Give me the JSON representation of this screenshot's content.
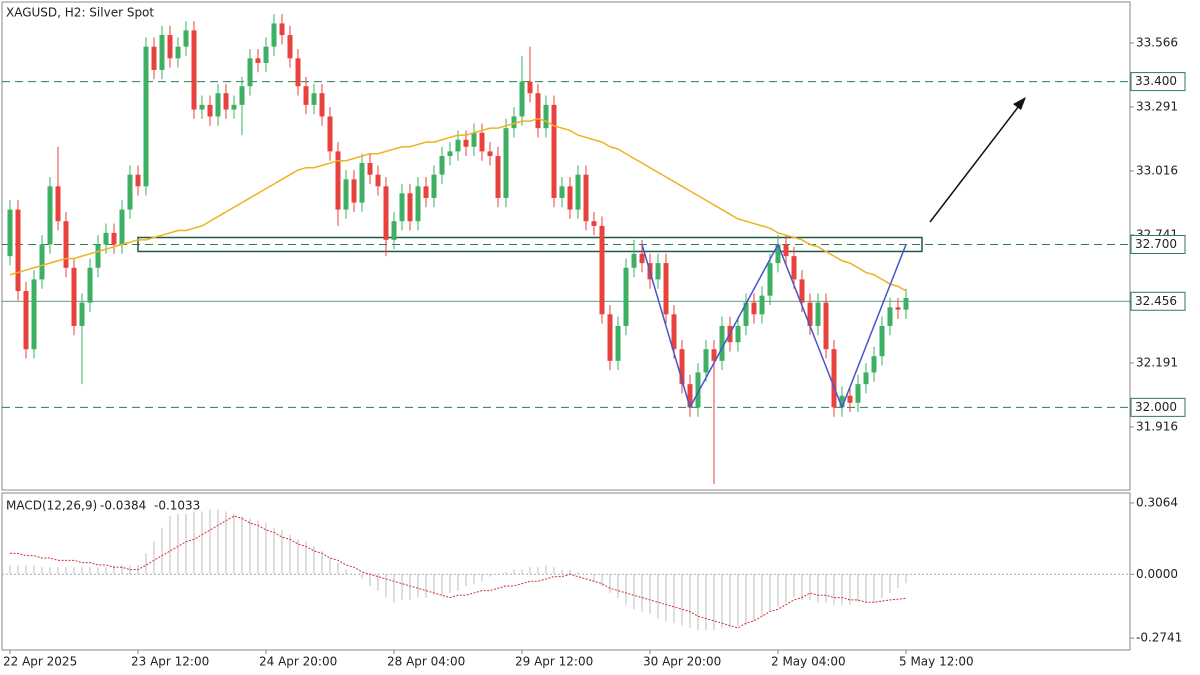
{
  "chart_data": {
    "type": "candlestick",
    "title": "XAGUSD, H2:  Silver Spot",
    "categories": [
      "22 Apr 2025",
      null,
      null,
      null,
      null,
      null,
      null,
      null,
      null,
      null,
      null,
      null,
      null,
      null,
      null,
      null,
      "23 Apr 12:00",
      null,
      null,
      null,
      null,
      null,
      null,
      null,
      null,
      null,
      null,
      null,
      null,
      null,
      null,
      null,
      "24 Apr 20:00",
      null,
      null,
      null,
      null,
      null,
      null,
      null,
      null,
      null,
      null,
      null,
      null,
      null,
      null,
      null,
      "28 Apr 04:00",
      null,
      null,
      null,
      null,
      null,
      null,
      null,
      null,
      null,
      null,
      null,
      null,
      null,
      null,
      null,
      "29 Apr 12:00",
      null,
      null,
      null,
      null,
      null,
      null,
      null,
      null,
      null,
      null,
      null,
      null,
      null,
      null,
      null,
      "30 Apr 20:00",
      null,
      null,
      null,
      null,
      null,
      null,
      null,
      null,
      null,
      null,
      null,
      null,
      null,
      null,
      null,
      "2 May 04:00",
      null,
      null,
      null,
      null,
      null,
      null,
      null,
      null,
      null,
      null,
      null,
      null,
      null,
      null,
      null,
      "5 May 12:00"
    ],
    "open": [
      32.65,
      32.85,
      32.5,
      32.25,
      32.55,
      32.7,
      32.95,
      32.8,
      32.6,
      32.35,
      32.45,
      32.6,
      32.7,
      32.75,
      32.7,
      32.85,
      33.0,
      32.95,
      33.55,
      33.45,
      33.6,
      33.5,
      33.55,
      33.62,
      33.28,
      33.3,
      33.25,
      33.35,
      33.28,
      33.3,
      33.38,
      33.5,
      33.48,
      33.55,
      33.65,
      33.6,
      33.5,
      33.38,
      33.3,
      33.35,
      33.25,
      33.1,
      32.85,
      32.98,
      32.88,
      33.05,
      33.0,
      32.95,
      32.72,
      32.8,
      32.92,
      32.8,
      32.95,
      32.9,
      33.0,
      33.08,
      33.1,
      33.15,
      33.12,
      33.18,
      33.1,
      33.08,
      32.9,
      33.2,
      33.25,
      33.4,
      33.35,
      33.2,
      33.3,
      32.9,
      32.95,
      32.85,
      33.0,
      32.8,
      32.78,
      32.4,
      32.2,
      32.35,
      32.6,
      32.66,
      32.62,
      32.55,
      32.62,
      32.4,
      32.25,
      32.1,
      32.0,
      32.15,
      32.25,
      32.2,
      32.35,
      32.28,
      32.35,
      32.45,
      32.4,
      32.48,
      32.62,
      32.7,
      32.65,
      32.55,
      32.45,
      32.35,
      32.45,
      32.25,
      32.0,
      32.05,
      32.02,
      32.1,
      32.15,
      32.22,
      32.35,
      32.43,
      32.42
    ],
    "high": [
      32.89,
      32.89,
      32.54,
      32.59,
      32.74,
      32.99,
      33.12,
      32.84,
      32.64,
      32.49,
      32.64,
      32.74,
      32.79,
      32.79,
      32.89,
      33.04,
      33.04,
      33.59,
      33.59,
      33.64,
      33.64,
      33.59,
      33.66,
      33.66,
      33.34,
      33.34,
      33.39,
      33.39,
      33.34,
      33.42,
      33.54,
      33.54,
      33.59,
      33.69,
      33.69,
      33.64,
      33.54,
      33.42,
      33.39,
      33.39,
      33.29,
      33.14,
      33.02,
      33.02,
      33.09,
      33.09,
      33.04,
      32.99,
      32.84,
      32.96,
      32.96,
      32.99,
      32.99,
      33.04,
      33.12,
      33.14,
      33.19,
      33.19,
      33.22,
      33.22,
      33.14,
      33.12,
      33.24,
      33.29,
      33.51,
      33.55,
      33.39,
      33.34,
      33.34,
      32.99,
      32.99,
      33.04,
      33.04,
      32.84,
      32.82,
      32.44,
      32.39,
      32.64,
      32.72,
      32.72,
      32.66,
      32.66,
      32.66,
      32.44,
      32.29,
      32.14,
      32.19,
      32.29,
      32.29,
      32.39,
      32.39,
      32.39,
      32.49,
      32.49,
      32.52,
      32.66,
      32.74,
      32.74,
      32.69,
      32.59,
      32.49,
      32.49,
      32.49,
      32.29,
      32.09,
      32.09,
      32.14,
      32.19,
      32.26,
      32.39,
      32.47,
      32.47,
      32.51
    ],
    "low": [
      32.61,
      32.46,
      32.21,
      32.21,
      32.51,
      32.66,
      32.76,
      32.56,
      32.31,
      32.1,
      32.41,
      32.56,
      32.66,
      32.66,
      32.66,
      32.81,
      32.91,
      32.91,
      33.41,
      33.41,
      33.46,
      33.46,
      33.51,
      33.24,
      33.24,
      33.21,
      33.21,
      33.24,
      33.24,
      33.17,
      33.34,
      33.44,
      33.44,
      33.51,
      33.56,
      33.46,
      33.34,
      33.26,
      33.26,
      33.21,
      33.06,
      32.78,
      32.81,
      32.84,
      32.84,
      32.96,
      32.91,
      32.65,
      32.68,
      32.76,
      32.76,
      32.76,
      32.86,
      32.86,
      32.96,
      33.04,
      33.06,
      33.08,
      33.08,
      33.06,
      33.04,
      32.86,
      32.86,
      33.16,
      33.21,
      33.31,
      33.16,
      33.16,
      32.86,
      32.86,
      32.81,
      32.81,
      32.76,
      32.74,
      32.36,
      32.16,
      32.16,
      32.31,
      32.56,
      32.58,
      32.51,
      32.51,
      32.36,
      32.21,
      32.06,
      31.96,
      31.96,
      32.11,
      31.67,
      32.16,
      32.24,
      32.24,
      32.31,
      32.36,
      32.36,
      32.44,
      32.58,
      32.61,
      32.51,
      32.41,
      32.31,
      32.31,
      32.21,
      31.96,
      31.96,
      31.98,
      31.98,
      32.06,
      32.11,
      32.18,
      32.31,
      32.38,
      32.38
    ],
    "close": [
      32.85,
      32.5,
      32.25,
      32.55,
      32.7,
      32.95,
      32.8,
      32.6,
      32.35,
      32.45,
      32.6,
      32.7,
      32.75,
      32.7,
      32.85,
      33.0,
      32.95,
      33.55,
      33.45,
      33.6,
      33.5,
      33.55,
      33.62,
      33.28,
      33.3,
      33.25,
      33.35,
      33.28,
      33.3,
      33.38,
      33.5,
      33.48,
      33.55,
      33.65,
      33.6,
      33.5,
      33.38,
      33.3,
      33.35,
      33.25,
      33.1,
      32.85,
      32.98,
      32.88,
      33.05,
      33.0,
      32.95,
      32.72,
      32.8,
      32.92,
      32.8,
      32.95,
      32.9,
      33.0,
      33.08,
      33.1,
      33.15,
      33.12,
      33.18,
      33.1,
      33.08,
      32.9,
      33.2,
      33.25,
      33.4,
      33.35,
      33.2,
      33.3,
      32.9,
      32.95,
      32.85,
      33.0,
      32.8,
      32.78,
      32.4,
      32.2,
      32.35,
      32.6,
      32.66,
      32.62,
      32.55,
      32.62,
      32.4,
      32.25,
      32.1,
      32.0,
      32.15,
      32.25,
      32.2,
      32.35,
      32.28,
      32.35,
      32.45,
      32.4,
      32.48,
      32.62,
      32.7,
      32.65,
      32.55,
      32.45,
      32.35,
      32.45,
      32.25,
      32.0,
      32.05,
      32.02,
      32.1,
      32.15,
      32.22,
      32.35,
      32.43,
      32.42,
      32.47
    ],
    "up_color": "#3db064",
    "down_color": "#e8423c",
    "ylim": [
      31.645,
      33.742
    ],
    "yticks": [
      33.566,
      33.291,
      33.016,
      32.741,
      32.191,
      31.916
    ],
    "levels": [
      {
        "value": 33.4,
        "label": "33.400"
      },
      {
        "value": 32.7,
        "label": "32.700"
      },
      {
        "value": 32.0,
        "label": "32.000"
      }
    ],
    "level_color": "#2e7d4f",
    "current_price": 32.456,
    "moving_average": {
      "color": "#f0b21e",
      "values": [
        32.57,
        32.58,
        32.59,
        32.6,
        32.61,
        32.62,
        32.63,
        32.64,
        32.64,
        32.65,
        32.66,
        32.67,
        32.68,
        32.69,
        32.7,
        32.71,
        32.72,
        32.72,
        32.73,
        32.74,
        32.75,
        32.76,
        32.76,
        32.77,
        32.78,
        32.8,
        32.82,
        32.84,
        32.86,
        32.88,
        32.9,
        32.92,
        32.94,
        32.96,
        32.98,
        33.0,
        33.02,
        33.03,
        33.03,
        33.04,
        33.05,
        33.06,
        33.06,
        33.07,
        33.08,
        33.09,
        33.09,
        33.1,
        33.11,
        33.12,
        33.12,
        33.13,
        33.14,
        33.14,
        33.15,
        33.16,
        33.17,
        33.17,
        33.18,
        33.19,
        33.2,
        33.2,
        33.21,
        33.22,
        33.23,
        33.23,
        33.24,
        33.23,
        33.21,
        33.2,
        33.19,
        33.17,
        33.16,
        33.15,
        33.14,
        33.12,
        33.11,
        33.09,
        33.07,
        33.05,
        33.03,
        33.01,
        32.99,
        32.97,
        32.95,
        32.93,
        32.91,
        32.89,
        32.87,
        32.85,
        32.83,
        32.81,
        32.8,
        32.79,
        32.78,
        32.77,
        32.75,
        32.74,
        32.73,
        32.72,
        32.7,
        32.69,
        32.67,
        32.65,
        32.63,
        32.62,
        32.6,
        32.58,
        32.57,
        32.55,
        32.53,
        32.52,
        32.5
      ]
    },
    "zone": {
      "start": 16,
      "end": 114,
      "top": 32.73,
      "bottom": 32.67,
      "color": "#1f5a46"
    },
    "pattern": {
      "color": "#4a55c9",
      "x": [
        79,
        85,
        96,
        104,
        112
      ],
      "y": [
        32.7,
        32.0,
        32.7,
        32.0,
        32.7
      ]
    },
    "indicator": {
      "name": "MACD(12,26,9)",
      "histogram": {
        "color": "#bdbdbd",
        "values": [
          0.04,
          0.04,
          0.04,
          0.04,
          0.03,
          0.03,
          0.03,
          0.03,
          0.03,
          0.03,
          0.03,
          0.03,
          0.03,
          0.04,
          0.04,
          0.04,
          0.04,
          0.09,
          0.14,
          0.2,
          0.25,
          0.26,
          0.26,
          0.27,
          0.27,
          0.28,
          0.28,
          0.27,
          0.26,
          0.25,
          0.24,
          0.23,
          0.22,
          0.2,
          0.19,
          0.17,
          0.15,
          0.14,
          0.12,
          0.1,
          0.07,
          0.05,
          0.02,
          0.0,
          -0.02,
          -0.05,
          -0.07,
          -0.1,
          -0.12,
          -0.11,
          -0.11,
          -0.1,
          -0.1,
          -0.09,
          -0.09,
          -0.08,
          -0.07,
          -0.05,
          -0.04,
          -0.03,
          -0.01,
          0.0,
          0.01,
          0.02,
          0.02,
          0.03,
          0.03,
          0.04,
          0.03,
          0.02,
          0.02,
          0.01,
          0.0,
          -0.03,
          -0.05,
          -0.08,
          -0.1,
          -0.13,
          -0.15,
          -0.16,
          -0.17,
          -0.19,
          -0.2,
          -0.21,
          -0.22,
          -0.23,
          -0.24,
          -0.24,
          -0.24,
          -0.23,
          -0.23,
          -0.22,
          -0.22,
          -0.2,
          -0.18,
          -0.16,
          -0.14,
          -0.12,
          -0.1,
          -0.11,
          -0.11,
          -0.12,
          -0.12,
          -0.13,
          -0.13,
          -0.13,
          -0.12,
          -0.12,
          -0.12,
          -0.1,
          -0.08,
          -0.06,
          -0.0384
        ]
      },
      "signal": {
        "color": "#d03030",
        "values": [
          0.09,
          0.09,
          0.08,
          0.08,
          0.07,
          0.07,
          0.06,
          0.06,
          0.06,
          0.05,
          0.05,
          0.04,
          0.04,
          0.03,
          0.03,
          0.02,
          0.02,
          0.04,
          0.06,
          0.08,
          0.1,
          0.12,
          0.14,
          0.15,
          0.17,
          0.19,
          0.21,
          0.23,
          0.25,
          0.24,
          0.22,
          0.21,
          0.19,
          0.18,
          0.16,
          0.15,
          0.13,
          0.12,
          0.1,
          0.09,
          0.07,
          0.06,
          0.04,
          0.03,
          0.01,
          0.0,
          -0.01,
          -0.02,
          -0.03,
          -0.04,
          -0.05,
          -0.06,
          -0.07,
          -0.08,
          -0.09,
          -0.1,
          -0.09,
          -0.09,
          -0.08,
          -0.07,
          -0.07,
          -0.06,
          -0.05,
          -0.05,
          -0.04,
          -0.03,
          -0.03,
          -0.02,
          -0.01,
          -0.01,
          0.0,
          -0.01,
          -0.02,
          -0.03,
          -0.04,
          -0.06,
          -0.07,
          -0.08,
          -0.09,
          -0.1,
          -0.11,
          -0.12,
          -0.13,
          -0.14,
          -0.15,
          -0.16,
          -0.18,
          -0.19,
          -0.2,
          -0.21,
          -0.22,
          -0.23,
          -0.21,
          -0.2,
          -0.18,
          -0.16,
          -0.15,
          -0.13,
          -0.11,
          -0.1,
          -0.08,
          -0.09,
          -0.09,
          -0.1,
          -0.1,
          -0.11,
          -0.11,
          -0.12,
          -0.12,
          -0.115,
          -0.11,
          -0.107,
          -0.1033
        ]
      },
      "ylim": [
        -0.325,
        0.349
      ],
      "yticks": [
        0.3064,
        {
          "value": 0,
          "label": "0.0000"
        },
        -0.2741
      ]
    }
  }
}
